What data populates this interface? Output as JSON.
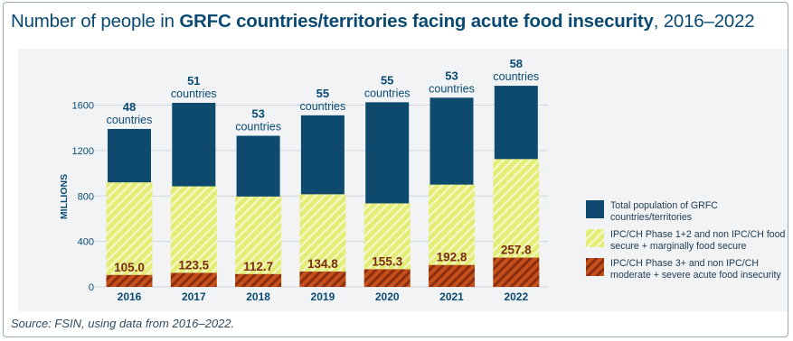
{
  "title": {
    "prefix": "Number of people in ",
    "bold": "GRFC countries/territories facing acute food insecurity",
    "suffix": ", 2016–2022"
  },
  "source": "Source: FSIN, using data from 2016–2022.",
  "colors": {
    "total": "#0d4a6e",
    "phase12": "#e3ec75",
    "phase12_stripe": "#f3f7c0",
    "phase3": "#c4501e",
    "phase3_stripe": "#8c2d0e",
    "axis_text": "#0a4a72",
    "grid": "#d0d6dc",
    "value_label": "#7a2c10"
  },
  "legend": [
    {
      "key": "total",
      "label": "Total population of GRFC countries/territories"
    },
    {
      "key": "phase12",
      "label": "IPC/CH Phase 1+2 and non IPC/CH food secure + marginally food secure"
    },
    {
      "key": "phase3",
      "label": "IPC/CH Phase 3+ and non IPC/CH moderate + severe acute food insecurity"
    }
  ],
  "chart_data": {
    "type": "bar",
    "title": "Number of people in GRFC countries/territories facing acute food insecurity, 2016–2022",
    "categories": [
      "2016",
      "2017",
      "2018",
      "2019",
      "2020",
      "2021",
      "2022"
    ],
    "ylabel": "MILLIONS",
    "ylim": [
      0,
      1800
    ],
    "yticks": [
      0,
      400,
      800,
      1200,
      1600
    ],
    "grid": true,
    "legend_position": "right",
    "series": [
      {
        "name": "Total population of GRFC countries/territories",
        "key": "total",
        "values": [
          1390,
          1620,
          1330,
          1510,
          1625,
          1665,
          1770
        ]
      },
      {
        "name": "IPC/CH Phase 1+2 and non IPC/CH food secure + marginally food secure",
        "key": "phase12",
        "values": [
          920,
          885,
          795,
          815,
          735,
          900,
          1125
        ]
      },
      {
        "name": "IPC/CH Phase 3+ and non IPC/CH moderate + severe acute food insecurity",
        "key": "phase3",
        "values": [
          105.0,
          123.5,
          112.7,
          134.8,
          155.3,
          192.8,
          257.8
        ]
      }
    ],
    "value_labels": [
      "105.0",
      "123.5",
      "112.7",
      "134.8",
      "155.3",
      "192.8",
      "257.8"
    ],
    "annotations": [
      {
        "count": "48",
        "unit": "countries"
      },
      {
        "count": "51",
        "unit": "countries"
      },
      {
        "count": "53",
        "unit": "countries"
      },
      {
        "count": "55",
        "unit": "countries"
      },
      {
        "count": "55",
        "unit": "countries"
      },
      {
        "count": "53",
        "unit": "countries"
      },
      {
        "count": "58",
        "unit": "countries"
      }
    ]
  }
}
